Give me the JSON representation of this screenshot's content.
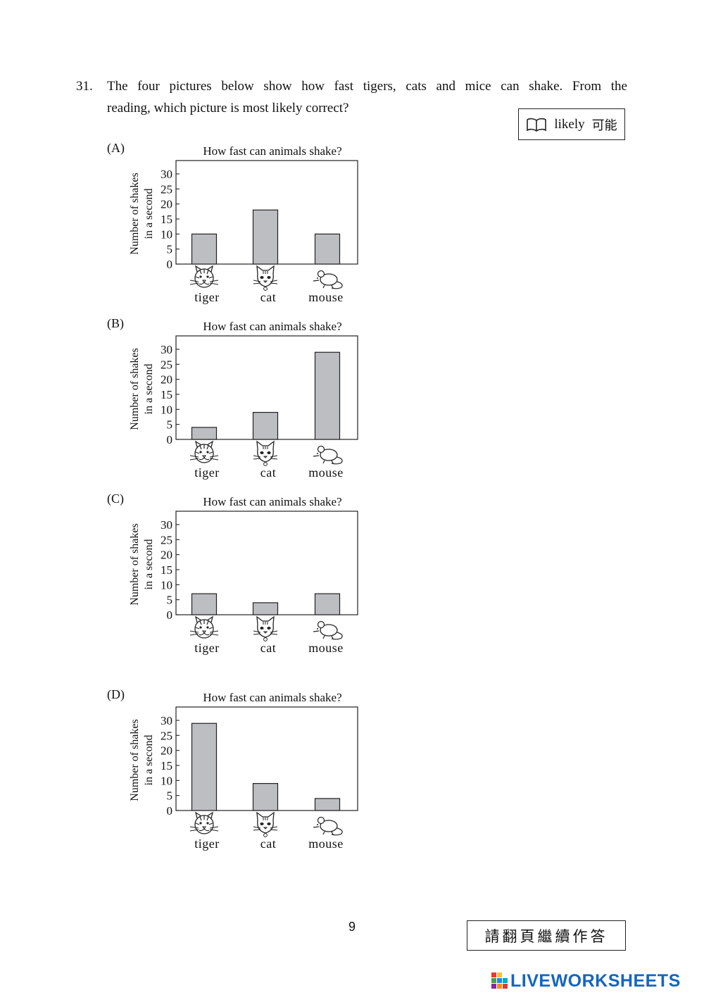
{
  "question": {
    "number": "31.",
    "line1": "The four pictures below show how fast tigers, cats and mice can shake.  From the",
    "line2": "reading, which picture is most likely correct?"
  },
  "vocab": {
    "icon": "book-icon",
    "word": "likely",
    "translation": "可能"
  },
  "charts": [
    {
      "option": "(A)",
      "chart_data": {
        "type": "bar",
        "title": "How fast can animals shake?",
        "ylabel": "Number of shakes in a second",
        "categories": [
          "tiger",
          "cat",
          "mouse"
        ],
        "values": [
          10,
          18,
          10
        ],
        "ylim": [
          0,
          30
        ],
        "yticks": [
          0,
          5,
          10,
          15,
          20,
          25,
          30
        ],
        "bar_color": "#bdbec2"
      }
    },
    {
      "option": "(B)",
      "chart_data": {
        "type": "bar",
        "title": "How fast can animals shake?",
        "ylabel": "Number of shakes in a second",
        "categories": [
          "tiger",
          "cat",
          "mouse"
        ],
        "values": [
          4,
          9,
          29
        ],
        "ylim": [
          0,
          30
        ],
        "yticks": [
          0,
          5,
          10,
          15,
          20,
          25,
          30
        ],
        "bar_color": "#bdbec2"
      }
    },
    {
      "option": "(C)",
      "chart_data": {
        "type": "bar",
        "title": "How fast can animals shake?",
        "ylabel": "Number of shakes in a second",
        "categories": [
          "tiger",
          "cat",
          "mouse"
        ],
        "values": [
          7,
          4,
          7
        ],
        "ylim": [
          0,
          30
        ],
        "yticks": [
          0,
          5,
          10,
          15,
          20,
          25,
          30
        ],
        "bar_color": "#bdbec2"
      }
    },
    {
      "option": "(D)",
      "chart_data": {
        "type": "bar",
        "title": "How fast can animals shake?",
        "ylabel": "Number of shakes in a second",
        "categories": [
          "tiger",
          "cat",
          "mouse"
        ],
        "values": [
          29,
          9,
          4
        ],
        "ylim": [
          0,
          30
        ],
        "yticks": [
          0,
          5,
          10,
          15,
          20,
          25,
          30
        ],
        "bar_color": "#bdbec2"
      }
    }
  ],
  "category_icons": [
    "tiger-icon",
    "cat-icon",
    "mouse-icon"
  ],
  "footer": {
    "page_number": "9",
    "turn_page": "請翻頁繼續作答",
    "brand": "LIVEWORKSHEETS",
    "brand_color": "#1565c0"
  }
}
